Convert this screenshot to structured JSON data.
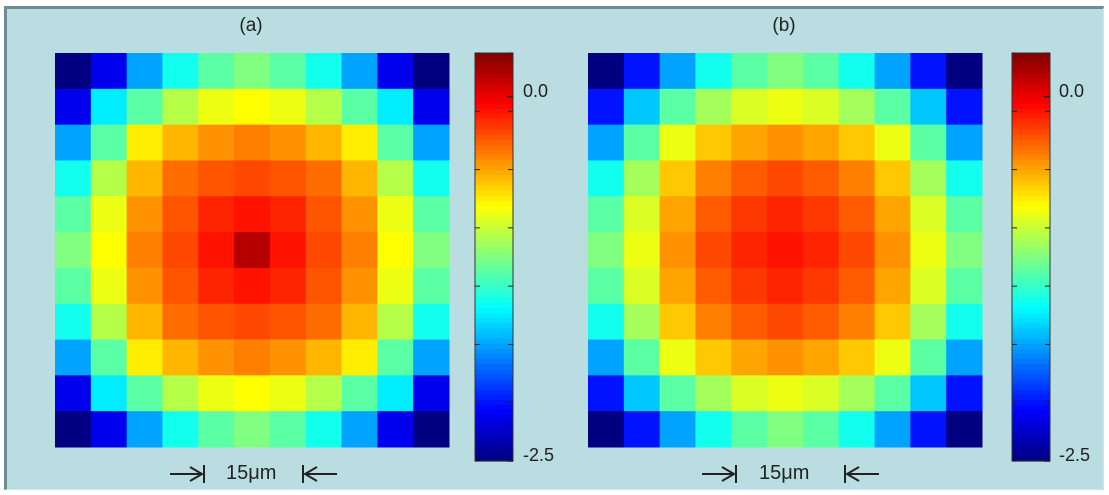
{
  "chart_data": [
    {
      "type": "heatmap",
      "title": "(a)",
      "colormap": "jet",
      "colorbar_range": [
        -2.5,
        0.3
      ],
      "colorbar_tick_labels": [
        "0.0",
        "-2.5"
      ],
      "colorbar_tick_values": [
        0.0,
        -2.5
      ],
      "scale_label": "15μm",
      "grid_size": [
        11,
        11
      ],
      "z": [
        [
          -2.5,
          -2.2,
          -1.7,
          -1.4,
          -1.2,
          -1.1,
          -1.2,
          -1.4,
          -1.7,
          -2.2,
          -2.5
        ],
        [
          -2.2,
          -1.5,
          -1.2,
          -0.95,
          -0.8,
          -0.75,
          -0.8,
          -0.95,
          -1.2,
          -1.5,
          -2.2
        ],
        [
          -1.7,
          -1.2,
          -0.7,
          -0.55,
          -0.45,
          -0.4,
          -0.45,
          -0.55,
          -0.7,
          -1.2,
          -1.7
        ],
        [
          -1.4,
          -0.95,
          -0.55,
          -0.35,
          -0.28,
          -0.25,
          -0.28,
          -0.35,
          -0.55,
          -0.95,
          -1.4
        ],
        [
          -1.2,
          -0.8,
          -0.45,
          -0.28,
          -0.15,
          -0.1,
          -0.15,
          -0.28,
          -0.45,
          -0.8,
          -1.2
        ],
        [
          -1.1,
          -0.75,
          -0.4,
          -0.25,
          -0.1,
          0.15,
          -0.1,
          -0.25,
          -0.4,
          -0.75,
          -1.1
        ],
        [
          -1.2,
          -0.8,
          -0.45,
          -0.28,
          -0.15,
          -0.1,
          -0.15,
          -0.28,
          -0.45,
          -0.8,
          -1.2
        ],
        [
          -1.4,
          -0.95,
          -0.55,
          -0.35,
          -0.28,
          -0.25,
          -0.28,
          -0.35,
          -0.55,
          -0.95,
          -1.4
        ],
        [
          -1.7,
          -1.2,
          -0.7,
          -0.55,
          -0.45,
          -0.4,
          -0.45,
          -0.55,
          -0.7,
          -1.2,
          -1.7
        ],
        [
          -2.2,
          -1.5,
          -1.2,
          -0.95,
          -0.8,
          -0.75,
          -0.8,
          -0.95,
          -1.2,
          -1.5,
          -2.2
        ],
        [
          -2.5,
          -2.2,
          -1.7,
          -1.4,
          -1.2,
          -1.1,
          -1.2,
          -1.4,
          -1.7,
          -2.2,
          -2.5
        ]
      ]
    },
    {
      "type": "heatmap",
      "title": "(b)",
      "colormap": "jet",
      "colorbar_range": [
        -2.5,
        0.3
      ],
      "colorbar_tick_labels": [
        "0.0",
        "-2.5"
      ],
      "colorbar_tick_values": [
        0.0,
        -2.5
      ],
      "scale_label": "15μm",
      "grid_size": [
        11,
        11
      ],
      "z": [
        [
          -2.5,
          -2.1,
          -1.7,
          -1.4,
          -1.2,
          -1.1,
          -1.2,
          -1.4,
          -1.7,
          -2.1,
          -2.5
        ],
        [
          -2.1,
          -1.6,
          -1.2,
          -1.0,
          -0.85,
          -0.8,
          -0.85,
          -1.0,
          -1.2,
          -1.6,
          -2.1
        ],
        [
          -1.7,
          -1.2,
          -0.8,
          -0.6,
          -0.5,
          -0.45,
          -0.5,
          -0.6,
          -0.8,
          -1.2,
          -1.7
        ],
        [
          -1.4,
          -1.0,
          -0.6,
          -0.4,
          -0.3,
          -0.25,
          -0.3,
          -0.4,
          -0.6,
          -1.0,
          -1.4
        ],
        [
          -1.2,
          -0.85,
          -0.5,
          -0.3,
          -0.2,
          -0.15,
          -0.2,
          -0.3,
          -0.5,
          -0.85,
          -1.2
        ],
        [
          -1.1,
          -0.8,
          -0.45,
          -0.25,
          -0.15,
          -0.1,
          -0.15,
          -0.25,
          -0.45,
          -0.8,
          -1.1
        ],
        [
          -1.2,
          -0.85,
          -0.5,
          -0.3,
          -0.2,
          -0.15,
          -0.2,
          -0.3,
          -0.5,
          -0.85,
          -1.2
        ],
        [
          -1.4,
          -1.0,
          -0.6,
          -0.4,
          -0.3,
          -0.25,
          -0.3,
          -0.4,
          -0.6,
          -1.0,
          -1.4
        ],
        [
          -1.7,
          -1.2,
          -0.8,
          -0.6,
          -0.5,
          -0.45,
          -0.5,
          -0.6,
          -0.8,
          -1.2,
          -1.7
        ],
        [
          -2.1,
          -1.6,
          -1.2,
          -1.0,
          -0.85,
          -0.8,
          -0.85,
          -1.0,
          -1.2,
          -1.6,
          -2.1
        ],
        [
          -2.5,
          -2.1,
          -1.7,
          -1.4,
          -1.2,
          -1.1,
          -1.2,
          -1.4,
          -1.7,
          -2.1,
          -2.5
        ]
      ]
    }
  ]
}
